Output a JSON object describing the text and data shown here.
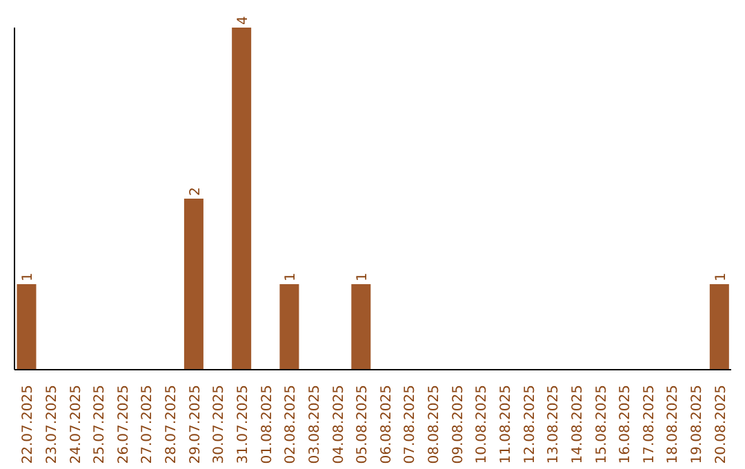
{
  "chart_data": {
    "type": "bar",
    "categories": [
      "22.07.2025",
      "23.07.2025",
      "24.07.2025",
      "25.07.2025",
      "26.07.2025",
      "27.07.2025",
      "28.07.2025",
      "29.07.2025",
      "30.07.2025",
      "31.07.2025",
      "01.08.2025",
      "02.08.2025",
      "03.08.2025",
      "04.08.2025",
      "05.08.2025",
      "06.08.2025",
      "07.08.2025",
      "08.08.2025",
      "09.08.2025",
      "10.08.2025",
      "11.08.2025",
      "12.08.2025",
      "13.08.2025",
      "14.08.2025",
      "15.08.2025",
      "16.08.2025",
      "17.08.2025",
      "18.08.2025",
      "19.08.2025",
      "20.08.2025"
    ],
    "values": [
      1,
      0,
      0,
      0,
      0,
      0,
      0,
      2,
      0,
      4,
      0,
      1,
      0,
      0,
      1,
      0,
      0,
      0,
      0,
      0,
      0,
      0,
      0,
      0,
      0,
      0,
      0,
      0,
      0,
      1
    ],
    "value_labels": [
      "1",
      null,
      null,
      null,
      null,
      null,
      null,
      "2",
      null,
      "4",
      null,
      "1",
      null,
      null,
      "1",
      null,
      null,
      null,
      null,
      null,
      null,
      null,
      null,
      null,
      null,
      null,
      null,
      null,
      null,
      "1"
    ],
    "color": "#a0582a",
    "tick_labels": "x",
    "grid": false
  }
}
